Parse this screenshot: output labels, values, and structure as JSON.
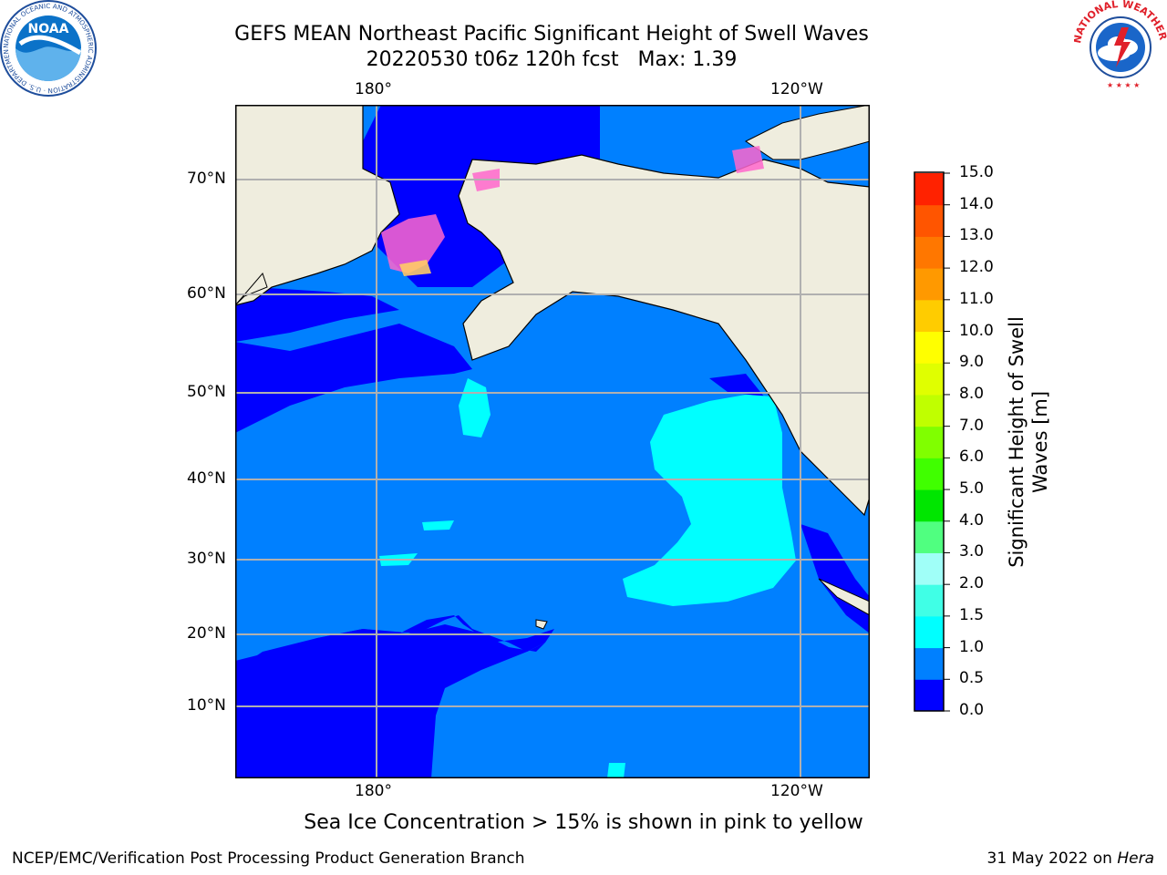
{
  "title": {
    "line1": "GEFS MEAN Northeast Pacific Significant Height of Swell Waves",
    "line2": "20220530 t06z 120h fcst   Max: 1.39"
  },
  "map": {
    "lon_labels": [
      "180°",
      "120°W"
    ],
    "lat_labels": [
      "70°N",
      "60°N",
      "50°N",
      "40°N",
      "30°N",
      "20°N",
      "10°N"
    ]
  },
  "colorbar": {
    "label_line1": "Significant Height of Swell",
    "label_line2": "Waves [m]",
    "ticks": [
      "0.0",
      "0.5",
      "1.0",
      "1.5",
      "2.0",
      "3.0",
      "4.0",
      "5.0",
      "6.0",
      "7.0",
      "8.0",
      "9.0",
      "10.0",
      "11.0",
      "12.0",
      "13.0",
      "14.0",
      "15.0"
    ],
    "colors": [
      "#0000ff",
      "#0080ff",
      "#00ffff",
      "#40ffe6",
      "#a0fff8",
      "#50ff80",
      "#00e600",
      "#40ff00",
      "#80ff00",
      "#c0ff00",
      "#e0ff00",
      "#ffff00",
      "#ffcc00",
      "#ff9900",
      "#ff7700",
      "#ff5500",
      "#ff2200"
    ]
  },
  "caption": "Sea Ice Concentration > 15% is shown in pink to yellow",
  "footer": {
    "left": "NCEP/EMC/Verification Post Processing Product Generation Branch",
    "date": "31 May 2022 on ",
    "host": "Hera"
  },
  "logos": {
    "noaa_text": "NOAA",
    "noaa_ring": "NATIONAL OCEANIC AND ATMOSPHERIC ADMINISTRATION · U.S. DEPARTMENT OF COMMERCE ·",
    "nws_ring": "NATIONAL WEATHER SERVICE"
  }
}
